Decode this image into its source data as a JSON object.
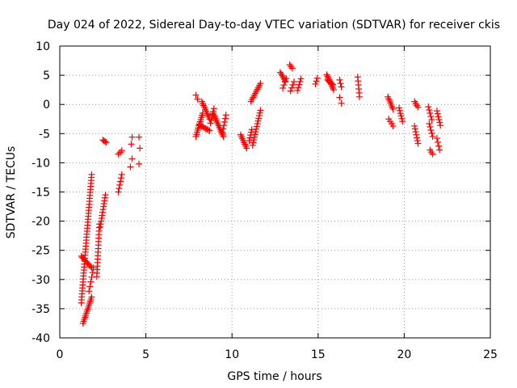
{
  "chart_data": {
    "type": "scatter",
    "title": "Day 024 of 2022, Sidereal Day-to-day VTEC variation (SDTVAR) for receiver ckis",
    "xlabel": "GPS time / hours",
    "ylabel": "SDTVAR / TECUs",
    "xlim": [
      0,
      25
    ],
    "ylim": [
      -40,
      10
    ],
    "xticks": [
      0,
      5,
      10,
      15,
      20,
      25
    ],
    "yticks": [
      -40,
      -35,
      -30,
      -25,
      -20,
      -15,
      -10,
      -5,
      0,
      5,
      10
    ],
    "grid": true,
    "marker": "+",
    "color": "#ff0000",
    "segments": [
      {
        "x0": 1.25,
        "y0": -34,
        "x1": 1.85,
        "y1": -12,
        "n": 44
      },
      {
        "x0": 1.25,
        "y0": -26,
        "x1": 1.85,
        "y1": -28,
        "n": 10
      },
      {
        "x0": 1.35,
        "y0": -37.5,
        "x1": 1.85,
        "y1": -33,
        "n": 14
      },
      {
        "x0": 1.7,
        "y0": -32,
        "x1": 1.95,
        "y1": -28,
        "n": 6
      },
      {
        "x0": 2.15,
        "y0": -29.5,
        "x1": 2.3,
        "y1": -20.5,
        "n": 16
      },
      {
        "x0": 2.35,
        "y0": -21,
        "x1": 2.65,
        "y1": -15.5,
        "n": 12
      },
      {
        "x0": 2.5,
        "y0": -6.1,
        "x1": 2.7,
        "y1": -6.5,
        "n": 4
      },
      {
        "x0": 3.4,
        "y0": -8.5,
        "x1": 3.6,
        "y1": -7.9,
        "n": 3
      },
      {
        "x0": 3.4,
        "y0": -15,
        "x1": 3.6,
        "y1": -12,
        "n": 6
      },
      {
        "x0": 4.1,
        "y0": -10.7,
        "x1": 4.2,
        "y1": -9.3,
        "n": 2
      },
      {
        "x0": 4.15,
        "y0": -6.8,
        "x1": 4.2,
        "y1": -5.6,
        "n": 2
      },
      {
        "x0": 4.6,
        "y0": -10.2,
        "x1": 4.65,
        "y1": -7.5,
        "n": 2
      },
      {
        "x0": 4.6,
        "y0": -5.6,
        "x1": 4.65,
        "y1": -5.6,
        "n": 1
      },
      {
        "x0": 7.9,
        "y0": 1.6,
        "x1": 8.0,
        "y1": 0.9,
        "n": 2
      },
      {
        "x0": 7.9,
        "y0": -5.5,
        "x1": 8.3,
        "y1": -1.5,
        "n": 12
      },
      {
        "x0": 8.1,
        "y0": -3.5,
        "x1": 8.7,
        "y1": -4.5,
        "n": 9
      },
      {
        "x0": 8.25,
        "y0": 0.5,
        "x1": 8.7,
        "y1": -2.5,
        "n": 10
      },
      {
        "x0": 8.75,
        "y0": -3.2,
        "x1": 8.95,
        "y1": -0.7,
        "n": 6
      },
      {
        "x0": 8.9,
        "y0": -1.5,
        "x1": 9.5,
        "y1": -5.5,
        "n": 14
      },
      {
        "x0": 9.45,
        "y0": -4.8,
        "x1": 9.65,
        "y1": -1.8,
        "n": 6
      },
      {
        "x0": 10.5,
        "y0": -5.2,
        "x1": 10.85,
        "y1": -7.5,
        "n": 8
      },
      {
        "x0": 11.0,
        "y0": -6.2,
        "x1": 11.15,
        "y1": -4.3,
        "n": 5
      },
      {
        "x0": 11.1,
        "y0": 0.5,
        "x1": 11.65,
        "y1": 3.6,
        "n": 10
      },
      {
        "x0": 11.2,
        "y0": -7,
        "x1": 11.65,
        "y1": -1,
        "n": 14
      },
      {
        "x0": 12.8,
        "y0": 5.5,
        "x1": 13.1,
        "y1": 4,
        "n": 6
      },
      {
        "x0": 12.95,
        "y0": 2.8,
        "x1": 13.15,
        "y1": 4.4,
        "n": 4
      },
      {
        "x0": 13.35,
        "y0": 6.8,
        "x1": 13.5,
        "y1": 6.2,
        "n": 3
      },
      {
        "x0": 13.4,
        "y0": 2.3,
        "x1": 13.6,
        "y1": 3.9,
        "n": 4
      },
      {
        "x0": 13.8,
        "y0": 2.4,
        "x1": 14.0,
        "y1": 4.4,
        "n": 5
      },
      {
        "x0": 14.85,
        "y0": 3.5,
        "x1": 14.95,
        "y1": 4.5,
        "n": 3
      },
      {
        "x0": 15.5,
        "y0": 5.1,
        "x1": 15.9,
        "y1": 2.5,
        "n": 10
      },
      {
        "x0": 15.55,
        "y0": 4.2,
        "x1": 15.85,
        "y1": 3.4,
        "n": 6
      },
      {
        "x0": 16.25,
        "y0": 4.2,
        "x1": 16.35,
        "y1": 3,
        "n": 3
      },
      {
        "x0": 16.25,
        "y0": 1.2,
        "x1": 16.35,
        "y1": 0.2,
        "n": 2
      },
      {
        "x0": 17.3,
        "y0": 4.7,
        "x1": 17.4,
        "y1": 1.3,
        "n": 6
      },
      {
        "x0": 19.05,
        "y0": 1.3,
        "x1": 19.35,
        "y1": -0.8,
        "n": 7
      },
      {
        "x0": 19.1,
        "y0": -2.5,
        "x1": 19.35,
        "y1": -3.7,
        "n": 4
      },
      {
        "x0": 19.7,
        "y0": -0.6,
        "x1": 19.9,
        "y1": -2.9,
        "n": 6
      },
      {
        "x0": 20.6,
        "y0": 0.5,
        "x1": 20.8,
        "y1": -0.5,
        "n": 4
      },
      {
        "x0": 20.6,
        "y0": -3.7,
        "x1": 20.8,
        "y1": -6.7,
        "n": 7
      },
      {
        "x0": 21.4,
        "y0": -0.4,
        "x1": 21.6,
        "y1": -2.6,
        "n": 5
      },
      {
        "x0": 21.45,
        "y0": -3.3,
        "x1": 21.65,
        "y1": -5.5,
        "n": 5
      },
      {
        "x0": 21.5,
        "y0": -7.8,
        "x1": 21.65,
        "y1": -8.5,
        "n": 3
      },
      {
        "x0": 21.9,
        "y0": -1.1,
        "x1": 22.1,
        "y1": -3.6,
        "n": 6
      },
      {
        "x0": 21.9,
        "y0": -5.8,
        "x1": 22.05,
        "y1": -7.8,
        "n": 4
      }
    ]
  }
}
